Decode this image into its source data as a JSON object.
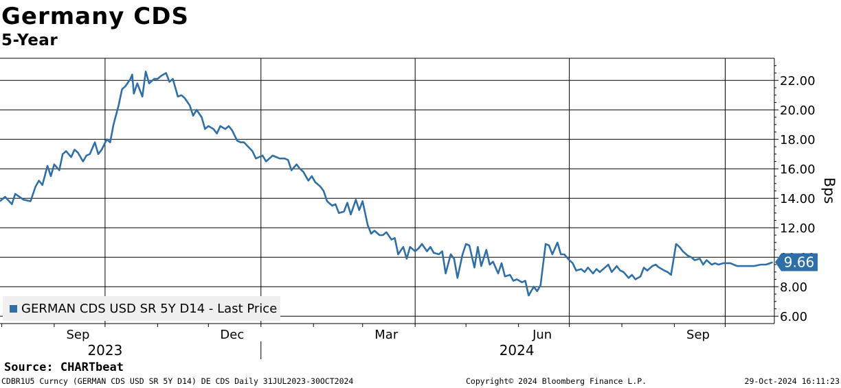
{
  "chart_data": {
    "type": "line",
    "title": "Germany CDS",
    "subtitle": "5-Year",
    "ylabel": "Bps",
    "ylim": [
      5.5,
      23.5
    ],
    "y_ticks": [
      6,
      8,
      10,
      12,
      14,
      16,
      18,
      20,
      22
    ],
    "y_tick_labels": [
      "6.00",
      "8.00",
      "10.00",
      "12.00",
      "14.00",
      "16.00",
      "18.00",
      "20.00",
      "22.00"
    ],
    "x_range": [
      "2023-07-31",
      "2024-10-30"
    ],
    "x_tick_labels": [
      {
        "date": "2023-09-15",
        "label": "Sep"
      },
      {
        "date": "2023-12-15",
        "label": "Dec"
      },
      {
        "date": "2024-03-15",
        "label": "Mar"
      },
      {
        "date": "2024-06-15",
        "label": "Jun"
      },
      {
        "date": "2024-09-15",
        "label": "Sep"
      }
    ],
    "year_labels": [
      {
        "date": "2023-10-01",
        "label": "2023"
      },
      {
        "date": "2024-05-31",
        "label": "2024"
      }
    ],
    "grid": true,
    "legend_position": "bottom-left",
    "last_value_label": "9.66",
    "series": [
      {
        "name": "GERMAN CDS USD SR 5Y D14 - Last Price",
        "color": "#2e6fa7",
        "points": [
          [
            "2023-07-31",
            13.8
          ],
          [
            "2023-08-03",
            14.1
          ],
          [
            "2023-08-07",
            13.6
          ],
          [
            "2023-08-09",
            14.3
          ],
          [
            "2023-08-14",
            13.9
          ],
          [
            "2023-08-18",
            13.8
          ],
          [
            "2023-08-21",
            14.8
          ],
          [
            "2023-08-23",
            15.2
          ],
          [
            "2023-08-25",
            14.9
          ],
          [
            "2023-08-28",
            16.2
          ],
          [
            "2023-08-30",
            15.5
          ],
          [
            "2023-09-01",
            16.3
          ],
          [
            "2023-09-04",
            15.9
          ],
          [
            "2023-09-06",
            17.0
          ],
          [
            "2023-09-08",
            17.2
          ],
          [
            "2023-09-11",
            16.8
          ],
          [
            "2023-09-13",
            17.3
          ],
          [
            "2023-09-15",
            17.1
          ],
          [
            "2023-09-18",
            16.5
          ],
          [
            "2023-09-20",
            16.9
          ],
          [
            "2023-09-22",
            17.0
          ],
          [
            "2023-09-25",
            17.8
          ],
          [
            "2023-09-27",
            17.0
          ],
          [
            "2023-09-29",
            17.3
          ],
          [
            "2023-10-02",
            18.0
          ],
          [
            "2023-10-04",
            17.8
          ],
          [
            "2023-10-06",
            19.0
          ],
          [
            "2023-10-09",
            20.3
          ],
          [
            "2023-10-11",
            21.4
          ],
          [
            "2023-10-13",
            21.6
          ],
          [
            "2023-10-16",
            22.1
          ],
          [
            "2023-10-17",
            22.4
          ],
          [
            "2023-10-18",
            21.1
          ],
          [
            "2023-10-20",
            21.8
          ],
          [
            "2023-10-23",
            20.9
          ],
          [
            "2023-10-25",
            22.6
          ],
          [
            "2023-10-27",
            21.8
          ],
          [
            "2023-10-30",
            22.1
          ],
          [
            "2023-11-01",
            22.1
          ],
          [
            "2023-11-03",
            22.3
          ],
          [
            "2023-11-06",
            22.5
          ],
          [
            "2023-11-08",
            21.9
          ],
          [
            "2023-11-10",
            22.1
          ],
          [
            "2023-11-13",
            20.9
          ],
          [
            "2023-11-15",
            21.0
          ],
          [
            "2023-11-17",
            20.8
          ],
          [
            "2023-11-20",
            20.3
          ],
          [
            "2023-11-22",
            19.6
          ],
          [
            "2023-11-24",
            20.0
          ],
          [
            "2023-11-27",
            19.5
          ],
          [
            "2023-11-29",
            18.7
          ],
          [
            "2023-12-01",
            18.9
          ],
          [
            "2023-12-04",
            18.7
          ],
          [
            "2023-12-06",
            18.4
          ],
          [
            "2023-12-08",
            18.9
          ],
          [
            "2023-12-11",
            18.7
          ],
          [
            "2023-12-13",
            18.9
          ],
          [
            "2023-12-15",
            18.6
          ],
          [
            "2023-12-18",
            17.9
          ],
          [
            "2023-12-20",
            17.8
          ],
          [
            "2023-12-22",
            17.8
          ],
          [
            "2023-12-27",
            17.2
          ],
          [
            "2023-12-29",
            16.7
          ],
          [
            "2024-01-02",
            16.9
          ],
          [
            "2024-01-04",
            16.5
          ],
          [
            "2024-01-08",
            16.9
          ],
          [
            "2024-01-10",
            16.8
          ],
          [
            "2024-01-12",
            16.7
          ],
          [
            "2024-01-15",
            16.7
          ],
          [
            "2024-01-17",
            16.6
          ],
          [
            "2024-01-19",
            15.9
          ],
          [
            "2024-01-22",
            16.3
          ],
          [
            "2024-01-24",
            16.0
          ],
          [
            "2024-01-26",
            15.8
          ],
          [
            "2024-01-29",
            15.2
          ],
          [
            "2024-01-31",
            15.5
          ],
          [
            "2024-02-02",
            15.1
          ],
          [
            "2024-02-05",
            14.8
          ],
          [
            "2024-02-07",
            14.5
          ],
          [
            "2024-02-09",
            13.8
          ],
          [
            "2024-02-12",
            13.5
          ],
          [
            "2024-02-14",
            13.6
          ],
          [
            "2024-02-16",
            13.0
          ],
          [
            "2024-02-19",
            13.1
          ],
          [
            "2024-02-21",
            13.7
          ],
          [
            "2024-02-23",
            12.9
          ],
          [
            "2024-02-26",
            13.9
          ],
          [
            "2024-02-28",
            13.2
          ],
          [
            "2024-03-01",
            13.8
          ],
          [
            "2024-03-04",
            12.2
          ],
          [
            "2024-03-06",
            11.6
          ],
          [
            "2024-03-08",
            11.8
          ],
          [
            "2024-03-11",
            11.5
          ],
          [
            "2024-03-13",
            11.5
          ],
          [
            "2024-03-15",
            11.7
          ],
          [
            "2024-03-18",
            11.2
          ],
          [
            "2024-03-20",
            11.3
          ],
          [
            "2024-03-22",
            10.2
          ],
          [
            "2024-03-25",
            10.7
          ],
          [
            "2024-03-27",
            9.9
          ],
          [
            "2024-03-29",
            10.7
          ],
          [
            "2024-04-01",
            10.4
          ],
          [
            "2024-04-03",
            10.6
          ],
          [
            "2024-04-05",
            10.9
          ],
          [
            "2024-04-08",
            10.4
          ],
          [
            "2024-04-10",
            10.7
          ],
          [
            "2024-04-12",
            10.3
          ],
          [
            "2024-04-15",
            10.2
          ],
          [
            "2024-04-17",
            10.4
          ],
          [
            "2024-04-19",
            8.9
          ],
          [
            "2024-04-22",
            10.2
          ],
          [
            "2024-04-24",
            9.9
          ],
          [
            "2024-04-26",
            8.6
          ],
          [
            "2024-04-29",
            10.2
          ],
          [
            "2024-05-01",
            10.9
          ],
          [
            "2024-05-03",
            10.8
          ],
          [
            "2024-05-06",
            9.3
          ],
          [
            "2024-05-08",
            10.7
          ],
          [
            "2024-05-10",
            9.4
          ],
          [
            "2024-05-13",
            10.5
          ],
          [
            "2024-05-15",
            9.5
          ],
          [
            "2024-05-17",
            9.7
          ],
          [
            "2024-05-20",
            8.9
          ],
          [
            "2024-05-22",
            9.6
          ],
          [
            "2024-05-24",
            8.7
          ],
          [
            "2024-05-27",
            8.8
          ],
          [
            "2024-05-29",
            8.4
          ],
          [
            "2024-05-31",
            8.5
          ],
          [
            "2024-06-03",
            8.3
          ],
          [
            "2024-06-05",
            8.4
          ],
          [
            "2024-06-07",
            7.4
          ],
          [
            "2024-06-10",
            8.0
          ],
          [
            "2024-06-12",
            7.7
          ],
          [
            "2024-06-14",
            8.1
          ],
          [
            "2024-06-17",
            10.9
          ],
          [
            "2024-06-19",
            10.8
          ],
          [
            "2024-06-21",
            10.2
          ],
          [
            "2024-06-24",
            11.0
          ],
          [
            "2024-06-26",
            10.2
          ],
          [
            "2024-06-28",
            10.2
          ],
          [
            "2024-07-01",
            9.8
          ],
          [
            "2024-07-03",
            9.6
          ],
          [
            "2024-07-05",
            9.1
          ],
          [
            "2024-07-08",
            9.2
          ],
          [
            "2024-07-10",
            9.0
          ],
          [
            "2024-07-12",
            9.3
          ],
          [
            "2024-07-15",
            8.9
          ],
          [
            "2024-07-17",
            9.2
          ],
          [
            "2024-07-19",
            9.0
          ],
          [
            "2024-07-22",
            9.3
          ],
          [
            "2024-07-24",
            9.5
          ],
          [
            "2024-07-26",
            9.0
          ],
          [
            "2024-07-29",
            9.4
          ],
          [
            "2024-07-31",
            9.1
          ],
          [
            "2024-08-02",
            9.0
          ],
          [
            "2024-08-05",
            8.6
          ],
          [
            "2024-08-07",
            8.8
          ],
          [
            "2024-08-09",
            8.5
          ],
          [
            "2024-08-12",
            8.7
          ],
          [
            "2024-08-14",
            9.3
          ],
          [
            "2024-08-16",
            9.1
          ],
          [
            "2024-08-19",
            9.4
          ],
          [
            "2024-08-21",
            9.5
          ],
          [
            "2024-08-23",
            9.3
          ],
          [
            "2024-08-26",
            9.1
          ],
          [
            "2024-08-28",
            9.0
          ],
          [
            "2024-08-30",
            8.8
          ],
          [
            "2024-09-02",
            10.9
          ],
          [
            "2024-09-04",
            10.7
          ],
          [
            "2024-09-06",
            10.4
          ],
          [
            "2024-09-09",
            10.1
          ],
          [
            "2024-09-11",
            10.0
          ],
          [
            "2024-09-13",
            9.8
          ],
          [
            "2024-09-16",
            9.9
          ],
          [
            "2024-09-18",
            9.5
          ],
          [
            "2024-09-20",
            9.8
          ],
          [
            "2024-09-23",
            9.5
          ],
          [
            "2024-09-25",
            9.6
          ],
          [
            "2024-09-27",
            9.5
          ],
          [
            "2024-09-30",
            9.6
          ],
          [
            "2024-10-04",
            9.6
          ],
          [
            "2024-10-08",
            9.4
          ],
          [
            "2024-10-14",
            9.4
          ],
          [
            "2024-10-18",
            9.4
          ],
          [
            "2024-10-22",
            9.5
          ],
          [
            "2024-10-25",
            9.5
          ],
          [
            "2024-10-29",
            9.66
          ]
        ]
      }
    ]
  },
  "source": "Source: CHARTbeat",
  "footer": {
    "left": "CDBR1U5 Curncy (GERMAN CDS USD SR 5Y D14) DE CDS  Daily 31JUL2023-30OCT2024",
    "middle": "Copyright© 2024 Bloomberg Finance L.P.",
    "right": "29-Oct-2024 16:11:23"
  }
}
